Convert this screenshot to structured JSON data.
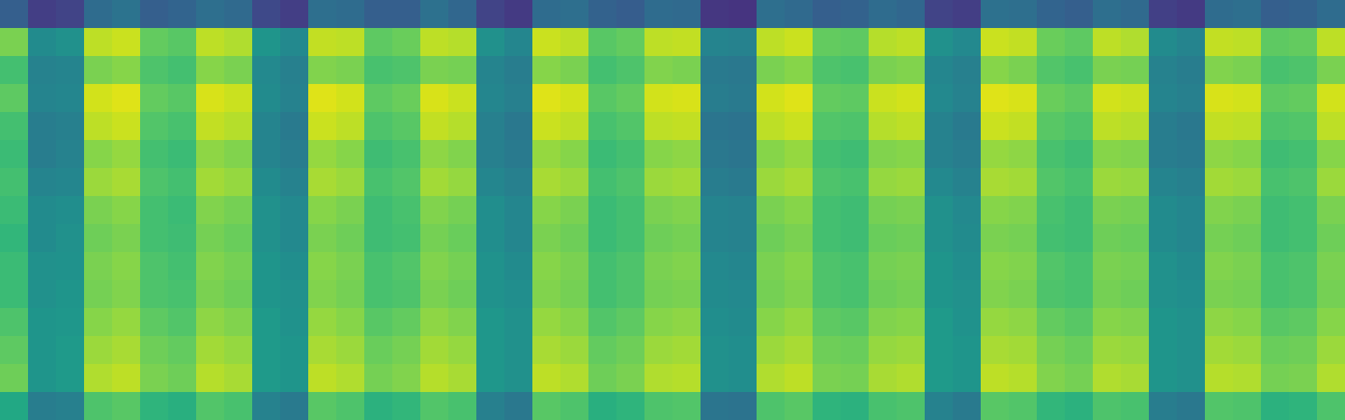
{
  "chart_data": {
    "type": "heatmap",
    "color": "viridis",
    "tick_labels": false,
    "color_range": [
      0,
      1
    ],
    "cells": [
      [
        0.3,
        0.18,
        0.2,
        0.35,
        0.38,
        0.3,
        0.32,
        0.36,
        0.34,
        0.22,
        0.18,
        0.36,
        0.35,
        0.3,
        0.3,
        0.37,
        0.33,
        0.2,
        0.17,
        0.35,
        0.36,
        0.31,
        0.29,
        0.35,
        0.34,
        0.16,
        0.15,
        0.36,
        0.34,
        0.3,
        0.31,
        0.35,
        0.33,
        0.2,
        0.18,
        0.37,
        0.36,
        0.32,
        0.3,
        0.36,
        0.34,
        0.19,
        0.17,
        0.35,
        0.36,
        0.3,
        0.31,
        0.35
      ],
      [
        0.8,
        0.48,
        0.5,
        0.9,
        0.92,
        0.76,
        0.74,
        0.9,
        0.88,
        0.52,
        0.47,
        0.91,
        0.9,
        0.75,
        0.77,
        0.9,
        0.89,
        0.5,
        0.46,
        0.92,
        0.9,
        0.74,
        0.76,
        0.9,
        0.91,
        0.45,
        0.44,
        0.9,
        0.92,
        0.76,
        0.75,
        0.89,
        0.9,
        0.5,
        0.47,
        0.92,
        0.91,
        0.77,
        0.75,
        0.9,
        0.88,
        0.48,
        0.45,
        0.91,
        0.9,
        0.75,
        0.76,
        0.9
      ],
      [
        0.7,
        0.44,
        0.45,
        0.8,
        0.82,
        0.72,
        0.7,
        0.82,
        0.8,
        0.47,
        0.43,
        0.81,
        0.8,
        0.71,
        0.72,
        0.8,
        0.79,
        0.45,
        0.42,
        0.82,
        0.8,
        0.7,
        0.72,
        0.81,
        0.8,
        0.41,
        0.4,
        0.8,
        0.82,
        0.72,
        0.71,
        0.8,
        0.81,
        0.46,
        0.43,
        0.82,
        0.8,
        0.73,
        0.71,
        0.8,
        0.79,
        0.44,
        0.42,
        0.81,
        0.8,
        0.71,
        0.72,
        0.8
      ],
      [
        0.75,
        0.45,
        0.46,
        0.93,
        0.95,
        0.76,
        0.74,
        0.94,
        0.92,
        0.48,
        0.44,
        0.95,
        0.93,
        0.75,
        0.77,
        0.94,
        0.92,
        0.46,
        0.43,
        0.95,
        0.93,
        0.74,
        0.76,
        0.93,
        0.94,
        0.42,
        0.41,
        0.93,
        0.95,
        0.76,
        0.75,
        0.92,
        0.93,
        0.47,
        0.44,
        0.95,
        0.94,
        0.77,
        0.75,
        0.93,
        0.92,
        0.45,
        0.43,
        0.94,
        0.93,
        0.75,
        0.76,
        0.93
      ],
      [
        0.7,
        0.42,
        0.43,
        0.9,
        0.92,
        0.73,
        0.71,
        0.91,
        0.89,
        0.45,
        0.41,
        0.92,
        0.9,
        0.72,
        0.74,
        0.91,
        0.89,
        0.43,
        0.4,
        0.92,
        0.9,
        0.71,
        0.73,
        0.9,
        0.91,
        0.39,
        0.38,
        0.9,
        0.92,
        0.73,
        0.72,
        0.89,
        0.9,
        0.44,
        0.41,
        0.92,
        0.91,
        0.74,
        0.72,
        0.9,
        0.89,
        0.42,
        0.4,
        0.91,
        0.9,
        0.72,
        0.73,
        0.9
      ],
      [
        0.68,
        0.42,
        0.44,
        0.82,
        0.84,
        0.7,
        0.68,
        0.83,
        0.81,
        0.45,
        0.42,
        0.84,
        0.82,
        0.69,
        0.71,
        0.83,
        0.81,
        0.43,
        0.41,
        0.84,
        0.82,
        0.68,
        0.7,
        0.82,
        0.83,
        0.4,
        0.39,
        0.82,
        0.84,
        0.7,
        0.69,
        0.81,
        0.82,
        0.44,
        0.42,
        0.84,
        0.83,
        0.71,
        0.69,
        0.82,
        0.81,
        0.42,
        0.41,
        0.83,
        0.82,
        0.69,
        0.7,
        0.82
      ],
      [
        0.7,
        0.45,
        0.46,
        0.85,
        0.87,
        0.72,
        0.7,
        0.86,
        0.84,
        0.48,
        0.44,
        0.87,
        0.85,
        0.71,
        0.73,
        0.86,
        0.84,
        0.46,
        0.43,
        0.87,
        0.85,
        0.7,
        0.72,
        0.85,
        0.86,
        0.42,
        0.41,
        0.85,
        0.87,
        0.72,
        0.71,
        0.84,
        0.85,
        0.47,
        0.44,
        0.87,
        0.86,
        0.73,
        0.71,
        0.85,
        0.84,
        0.45,
        0.43,
        0.86,
        0.85,
        0.71,
        0.72,
        0.85
      ],
      [
        0.68,
        0.48,
        0.49,
        0.8,
        0.82,
        0.7,
        0.68,
        0.81,
        0.79,
        0.5,
        0.47,
        0.82,
        0.8,
        0.69,
        0.71,
        0.81,
        0.79,
        0.49,
        0.46,
        0.82,
        0.8,
        0.68,
        0.7,
        0.8,
        0.81,
        0.45,
        0.44,
        0.8,
        0.82,
        0.7,
        0.69,
        0.79,
        0.8,
        0.5,
        0.47,
        0.82,
        0.81,
        0.71,
        0.69,
        0.8,
        0.79,
        0.48,
        0.46,
        0.81,
        0.8,
        0.69,
        0.7,
        0.8
      ],
      [
        0.66,
        0.48,
        0.5,
        0.78,
        0.8,
        0.7,
        0.69,
        0.79,
        0.77,
        0.5,
        0.47,
        0.8,
        0.78,
        0.69,
        0.7,
        0.79,
        0.77,
        0.49,
        0.46,
        0.8,
        0.78,
        0.68,
        0.7,
        0.78,
        0.79,
        0.45,
        0.44,
        0.78,
        0.8,
        0.7,
        0.69,
        0.77,
        0.78,
        0.5,
        0.48,
        0.8,
        0.79,
        0.7,
        0.69,
        0.78,
        0.77,
        0.48,
        0.46,
        0.79,
        0.78,
        0.69,
        0.7,
        0.78
      ],
      [
        0.68,
        0.5,
        0.51,
        0.8,
        0.82,
        0.72,
        0.7,
        0.81,
        0.79,
        0.52,
        0.49,
        0.82,
        0.8,
        0.71,
        0.73,
        0.81,
        0.79,
        0.51,
        0.48,
        0.82,
        0.8,
        0.7,
        0.72,
        0.8,
        0.81,
        0.47,
        0.46,
        0.8,
        0.82,
        0.72,
        0.71,
        0.79,
        0.8,
        0.52,
        0.49,
        0.82,
        0.81,
        0.73,
        0.71,
        0.8,
        0.79,
        0.5,
        0.48,
        0.81,
        0.8,
        0.71,
        0.72,
        0.8
      ],
      [
        0.68,
        0.5,
        0.52,
        0.79,
        0.81,
        0.72,
        0.71,
        0.8,
        0.78,
        0.52,
        0.5,
        0.81,
        0.79,
        0.71,
        0.72,
        0.8,
        0.78,
        0.51,
        0.49,
        0.81,
        0.79,
        0.7,
        0.72,
        0.79,
        0.8,
        0.48,
        0.47,
        0.79,
        0.81,
        0.72,
        0.71,
        0.78,
        0.79,
        0.52,
        0.5,
        0.81,
        0.8,
        0.72,
        0.71,
        0.79,
        0.78,
        0.5,
        0.49,
        0.8,
        0.79,
        0.71,
        0.72,
        0.79
      ],
      [
        0.72,
        0.52,
        0.53,
        0.82,
        0.84,
        0.75,
        0.73,
        0.83,
        0.81,
        0.54,
        0.51,
        0.84,
        0.82,
        0.74,
        0.76,
        0.83,
        0.81,
        0.53,
        0.5,
        0.84,
        0.82,
        0.73,
        0.75,
        0.82,
        0.83,
        0.49,
        0.48,
        0.82,
        0.84,
        0.75,
        0.74,
        0.81,
        0.82,
        0.54,
        0.51,
        0.84,
        0.83,
        0.76,
        0.74,
        0.82,
        0.81,
        0.52,
        0.5,
        0.83,
        0.82,
        0.74,
        0.75,
        0.82
      ],
      [
        0.75,
        0.52,
        0.54,
        0.85,
        0.87,
        0.78,
        0.76,
        0.86,
        0.84,
        0.54,
        0.52,
        0.87,
        0.85,
        0.77,
        0.79,
        0.86,
        0.84,
        0.53,
        0.5,
        0.87,
        0.85,
        0.76,
        0.78,
        0.85,
        0.86,
        0.5,
        0.49,
        0.85,
        0.87,
        0.78,
        0.77,
        0.84,
        0.85,
        0.54,
        0.52,
        0.87,
        0.86,
        0.79,
        0.77,
        0.85,
        0.84,
        0.52,
        0.5,
        0.86,
        0.85,
        0.77,
        0.78,
        0.85
      ],
      [
        0.78,
        0.52,
        0.54,
        0.88,
        0.9,
        0.8,
        0.78,
        0.89,
        0.87,
        0.54,
        0.52,
        0.9,
        0.88,
        0.79,
        0.81,
        0.89,
        0.87,
        0.53,
        0.5,
        0.9,
        0.88,
        0.78,
        0.8,
        0.88,
        0.89,
        0.5,
        0.49,
        0.88,
        0.9,
        0.8,
        0.79,
        0.87,
        0.88,
        0.54,
        0.52,
        0.9,
        0.89,
        0.81,
        0.79,
        0.88,
        0.87,
        0.52,
        0.5,
        0.89,
        0.88,
        0.79,
        0.8,
        0.88
      ],
      [
        0.6,
        0.42,
        0.43,
        0.72,
        0.74,
        0.65,
        0.63,
        0.73,
        0.71,
        0.44,
        0.41,
        0.74,
        0.72,
        0.64,
        0.66,
        0.73,
        0.71,
        0.43,
        0.4,
        0.74,
        0.72,
        0.63,
        0.65,
        0.72,
        0.73,
        0.39,
        0.38,
        0.72,
        0.74,
        0.65,
        0.64,
        0.71,
        0.72,
        0.44,
        0.41,
        0.74,
        0.73,
        0.66,
        0.64,
        0.72,
        0.71,
        0.42,
        0.4,
        0.73,
        0.72,
        0.64,
        0.65,
        0.72
      ]
    ]
  }
}
